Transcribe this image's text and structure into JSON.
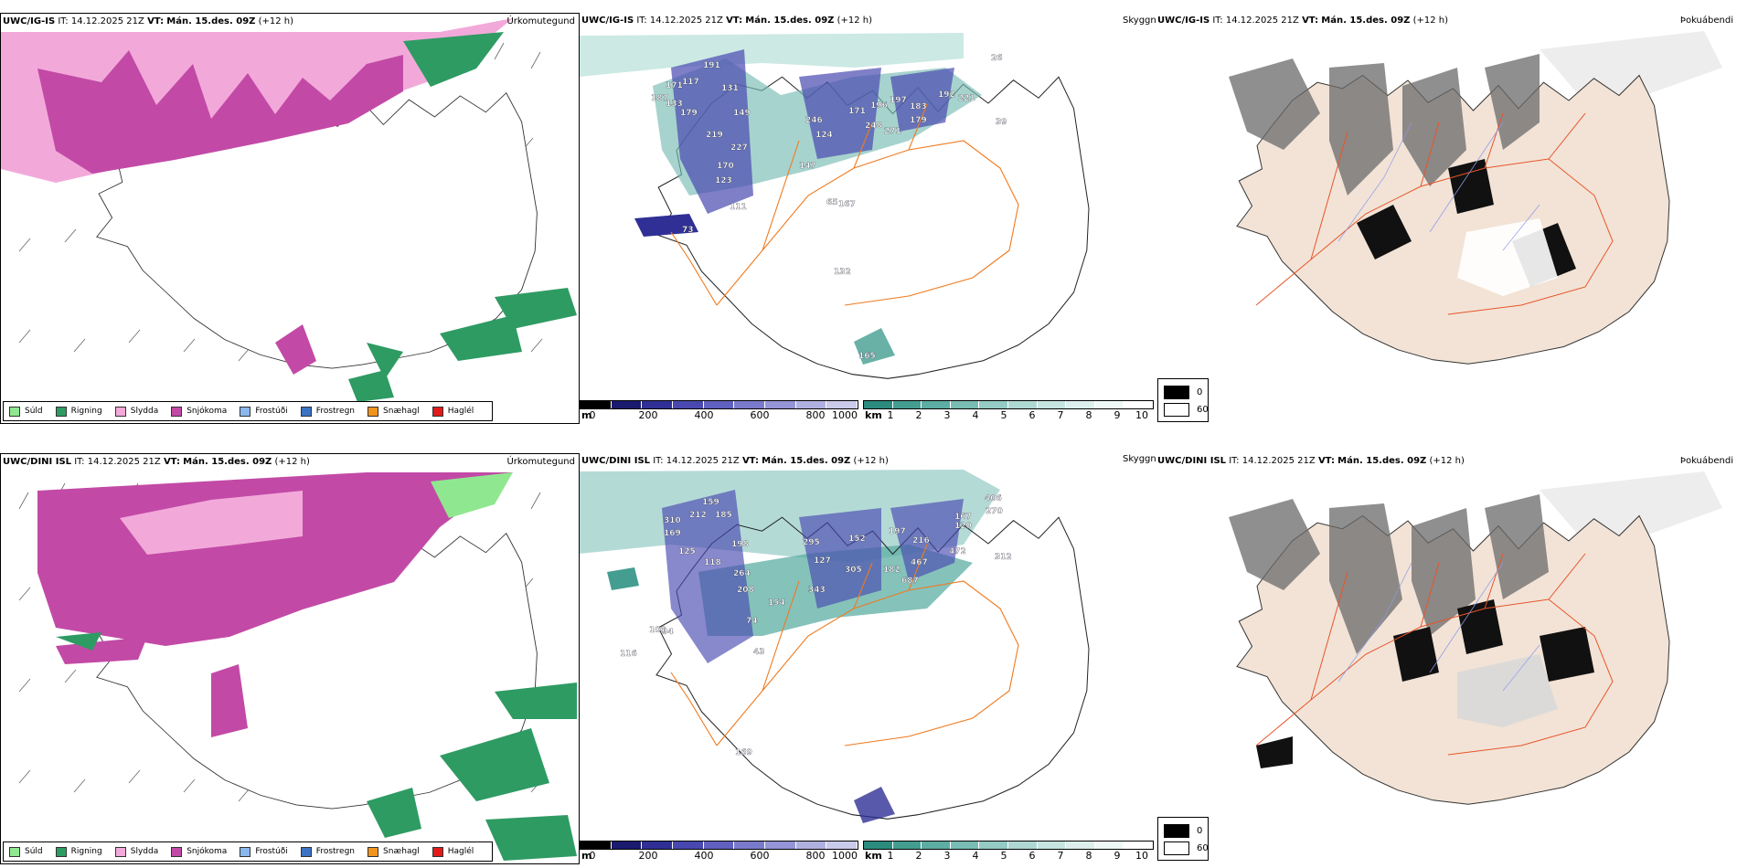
{
  "colors": {
    "suld": "#8fe88f",
    "rigning": "#2e9b63",
    "slydda": "#f2a9da",
    "snjokoma": "#c24aa6",
    "frostudi": "#8ab8ee",
    "frostregn": "#3b72c4",
    "snaehagl": "#f0941e",
    "haglel": "#e21a1a",
    "cloud_base": [
      "#000000",
      "#1a1a6e",
      "#2f2f96",
      "#4848b0",
      "#6060c0",
      "#7a7acc",
      "#9494d6",
      "#b0b0e0",
      "#cacaeb"
    ],
    "visibility": [
      "#2a8b7e",
      "#449d91",
      "#5cada3",
      "#78bcb3",
      "#94cbc4",
      "#aed8d2",
      "#c6e4e0",
      "#dcefec",
      "#eef8f6",
      "#ffffff"
    ],
    "roads": "#f07a1e",
    "land_fog": "#f2e3d6"
  },
  "panels": [
    {
      "model": "UWC/IG-IS",
      "it_label": "IT:",
      "it_value": "14.12.2025 21Z",
      "vt_label": "VT:",
      "vt_value": "Mán. 15.des. 09Z",
      "lead": "(+12 h)",
      "corner": "Úrkomutegund"
    },
    {
      "model": "UWC/IG-IS",
      "it_label": "IT:",
      "it_value": "14.12.2025 21Z",
      "vt_label": "VT:",
      "vt_value": "Mán. 15.des. 09Z",
      "lead": "(+12 h)",
      "corner": "Skyggni"
    },
    {
      "model": "UWC/IG-IS",
      "it_label": "IT:",
      "it_value": "14.12.2025 21Z",
      "vt_label": "VT:",
      "vt_value": "Mán. 15.des. 09Z",
      "lead": "(+12 h)",
      "corner": "Þokuábendi"
    },
    {
      "model": "UWC/DINI ISL",
      "it_label": "IT:",
      "it_value": "14.12.2025 21Z",
      "vt_label": "VT:",
      "vt_value": "Mán. 15.des. 09Z",
      "lead": "(+12 h)",
      "corner": "Úrkomutegund"
    },
    {
      "model": "UWC/DINI ISL",
      "it_label": "IT:",
      "it_value": "14.12.2025 21Z",
      "vt_label": "VT:",
      "vt_value": "Mán. 15.des. 09Z",
      "lead": "(+12 h)",
      "corner": "Skyggni"
    },
    {
      "model": "UWC/DINI ISL",
      "it_label": "IT:",
      "it_value": "14.12.2025 21Z",
      "vt_label": "VT:",
      "vt_value": "Mán. 15.des. 09Z",
      "lead": "(+12 h)",
      "corner": "Þokuábendi"
    }
  ],
  "precip_legend": [
    "Súld",
    "Rigning",
    "Slydda",
    "Snjókoma",
    "Frostúði",
    "Frostregn",
    "Snæhagl",
    "Haglél"
  ],
  "cloudbase_bar": {
    "unit": "m",
    "ticks": [
      "0",
      "200",
      "400",
      "600",
      "800",
      "1000"
    ]
  },
  "visibility_bar": {
    "unit": "km",
    "ticks": [
      "1",
      "2",
      "3",
      "4",
      "5",
      "6",
      "7",
      "8",
      "9",
      "10"
    ]
  },
  "fog_legend": {
    "values": [
      "0",
      "60"
    ]
  },
  "top_labels": [
    "191",
    "117",
    "131",
    "171",
    "187",
    "133",
    "179",
    "149",
    "219",
    "227",
    "170",
    "123",
    "111",
    "246",
    "124",
    "171",
    "196",
    "197",
    "183",
    "248",
    "271",
    "179",
    "192",
    "221",
    "26",
    "39",
    "147",
    "65",
    "167",
    "132",
    "165",
    "73"
  ],
  "bottom_labels": [
    "406",
    "270",
    "159",
    "212",
    "185",
    "310",
    "169",
    "198",
    "125",
    "118",
    "264",
    "208",
    "295",
    "152",
    "197",
    "216",
    "120",
    "167",
    "472",
    "312",
    "127",
    "305",
    "182",
    "687",
    "467",
    "343",
    "154",
    "100",
    "94",
    "74",
    "43",
    "169",
    "116"
  ]
}
